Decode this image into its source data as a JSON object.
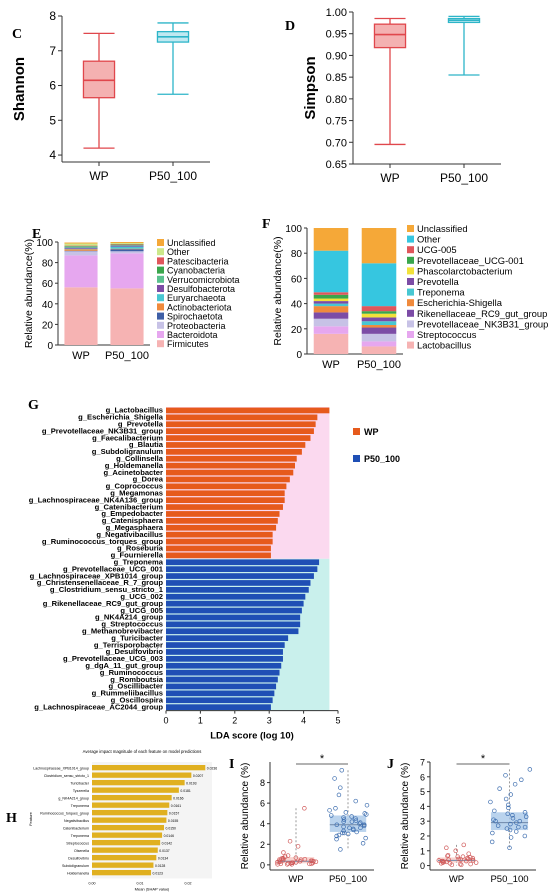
{
  "panel_labels": {
    "C": "C",
    "D": "D",
    "E": "E",
    "F": "F",
    "G": "G",
    "H": "H",
    "I": "I",
    "J": "J"
  },
  "colors": {
    "wp": "#e0474c",
    "p50": "#2db5c8",
    "wp_fill": "#f4b1b1",
    "p50_fill": "#bfe9f1",
    "lda_wp": "#e65a1c",
    "lda_p50": "#1f4fb5",
    "shap": "#e0b020"
  },
  "chart_data": [
    {
      "id": "C",
      "type": "box",
      "ylabel": "Shannon",
      "categories": [
        "WP",
        "P50_100"
      ],
      "ylim": [
        3.8,
        8
      ],
      "yticks": [
        4,
        5,
        6,
        7,
        8
      ],
      "boxes": [
        {
          "name": "WP",
          "min": 4.2,
          "q1": 5.65,
          "median": 6.15,
          "q3": 6.7,
          "max": 7.5
        },
        {
          "name": "P50_100",
          "min": 5.75,
          "q1": 7.25,
          "median": 7.4,
          "q3": 7.55,
          "max": 7.8
        }
      ]
    },
    {
      "id": "D",
      "type": "box",
      "ylabel": "Simpson",
      "categories": [
        "WP",
        "P50_100"
      ],
      "ylim": [
        0.65,
        1.0
      ],
      "yticks": [
        0.65,
        0.7,
        0.75,
        0.8,
        0.85,
        0.9,
        0.95,
        1.0
      ],
      "yticklabels": [
        "0.65",
        "0.70",
        "0.75",
        "0.80",
        "0.85",
        "0.90",
        "0.95",
        "1.00"
      ],
      "boxes": [
        {
          "name": "WP",
          "min": 0.695,
          "q1": 0.918,
          "median": 0.948,
          "q3": 0.972,
          "max": 0.985
        },
        {
          "name": "P50_100",
          "min": 0.855,
          "q1": 0.976,
          "median": 0.981,
          "q3": 0.985,
          "max": 0.99
        }
      ]
    },
    {
      "id": "E",
      "type": "bar",
      "stacked": true,
      "ylabel": "Relative abundance(%)",
      "categories": [
        "WP",
        "P50_100"
      ],
      "ylim": [
        0,
        100
      ],
      "yticks": [
        0,
        20,
        40,
        60,
        80,
        100
      ],
      "series": [
        {
          "name": "Firmicutes",
          "color": "#f6b3b3",
          "values": [
            56,
            55
          ]
        },
        {
          "name": "Bacteroidota",
          "color": "#e6a7ef",
          "values": [
            31,
            34
          ]
        },
        {
          "name": "Proteobacteria",
          "color": "#c7c2e6",
          "values": [
            4,
            2
          ]
        },
        {
          "name": "Spirochaetota",
          "color": "#3f5fa6",
          "values": [
            0.5,
            2
          ]
        },
        {
          "name": "Actinobacteriota",
          "color": "#f08a3c",
          "values": [
            1.5,
            0.5
          ]
        },
        {
          "name": "Euryarchaeota",
          "color": "#48c7d2",
          "values": [
            0.5,
            2
          ]
        },
        {
          "name": "Desulfobacterota",
          "color": "#7c4ca6",
          "values": [
            1,
            1
          ]
        },
        {
          "name": "Verrucomicrobiota",
          "color": "#5ac18e",
          "values": [
            1,
            0.5
          ]
        },
        {
          "name": "Cyanobacteria",
          "color": "#3aa64c",
          "values": [
            0.5,
            0.5
          ]
        },
        {
          "name": "Patescibacteria",
          "color": "#e0565b",
          "values": [
            0.5,
            0.5
          ]
        },
        {
          "name": "Other",
          "color": "#cce88a",
          "values": [
            2,
            1
          ]
        },
        {
          "name": "Unclassified",
          "color": "#f5a838",
          "values": [
            1,
            1
          ]
        }
      ]
    },
    {
      "id": "F",
      "type": "bar",
      "stacked": true,
      "ylabel": "Relative abundance(%)",
      "categories": [
        "WP",
        "P50_100"
      ],
      "ylim": [
        0,
        100
      ],
      "yticks": [
        0,
        20,
        40,
        60,
        80,
        100
      ],
      "series": [
        {
          "name": "Lactobacillus",
          "color": "#f6b3b3",
          "values": [
            16,
            6
          ]
        },
        {
          "name": "Streptococcus",
          "color": "#e6a7ef",
          "values": [
            6,
            4
          ]
        },
        {
          "name": "Prevotellaceae_NK3B31_group",
          "color": "#c7c2e6",
          "values": [
            6,
            6
          ]
        },
        {
          "name": "Rikenellaceae_RC9_gut_group",
          "color": "#7c4ca6",
          "values": [
            5,
            5
          ]
        },
        {
          "name": "Escherichia-Shigella",
          "color": "#f08a3c",
          "values": [
            5,
            2
          ]
        },
        {
          "name": "Treponema",
          "color": "#48c7d2",
          "values": [
            2,
            3
          ]
        },
        {
          "name": "Prevotella",
          "color": "#7c4ca6",
          "values": [
            2,
            3
          ]
        },
        {
          "name": "Phascolarctobacterium",
          "color": "#f2e23a",
          "values": [
            2,
            3
          ]
        },
        {
          "name": "Prevotellaceae_UCG-001",
          "color": "#3aa64c",
          "values": [
            3,
            2
          ]
        },
        {
          "name": "UCG-005",
          "color": "#e0565b",
          "values": [
            2,
            4
          ]
        },
        {
          "name": "Other",
          "color": "#36c6e0",
          "values": [
            33,
            34
          ]
        },
        {
          "name": "Unclassified",
          "color": "#f5a838",
          "values": [
            18,
            28
          ]
        }
      ]
    },
    {
      "id": "G",
      "type": "bar",
      "orientation": "horizontal",
      "xlabel": "LDA score (log 10)",
      "xlim": [
        0,
        5
      ],
      "xticks": [
        0,
        1,
        2,
        3,
        4,
        5
      ],
      "legend": [
        {
          "name": "WP",
          "color": "#e65a1c"
        },
        {
          "name": "P50_100",
          "color": "#1f4fb5"
        }
      ],
      "categories": [
        "g_Lactobacillus",
        "g_Escherichia_Shigella",
        "g_Prevotella",
        "g_Prevotellaceae_NK3B31_group",
        "g_Faecalibacterium",
        "g_Blautia",
        "g_Subdoligranulum",
        "g_Collinsella",
        "g_Holdemanella",
        "g_Acinetobacter",
        "g_Dorea",
        "g_Coprococcus",
        "g_Megamonas",
        "g_Lachnospiraceae_NK4A136_group",
        "g_Catenibacterium",
        "g_Empedobacter",
        "g_Catenisphaera",
        "g_Megasphaera",
        "g_Negativibacillus",
        "g_Ruminococcus_torques_group",
        "g_Roseburia",
        "g_Fournierella",
        "g_Treponema",
        "g_Prevotellaceae_UCG_001",
        "g_Lachnospiraceae_XPB1014_group",
        "g_Christensenellaceae_R_7_group",
        "g_Clostridium_sensu_stricto_1",
        "g_UCG_002",
        "g_Rikenellaceae_RC9_gut_group",
        "g_UCG_005",
        "g_NK4A214_group",
        "g_Streptococcus",
        "g_Methanobrevibacter",
        "g_Turicibacter",
        "g_Terrisporobacter",
        "g_Desulfovibrio",
        "g_Prevotellaceae_UCG_003",
        "g_dgA_11_gut_group",
        "g_Ruminococcus",
        "g_Romboutsia",
        "g_Oscillibacter",
        "g_Rummeliibacillus",
        "g_Oscillospira",
        "g_Lachnospiraceae_AC2044_group"
      ],
      "groups": [
        "WP",
        "WP",
        "WP",
        "WP",
        "WP",
        "WP",
        "WP",
        "WP",
        "WP",
        "WP",
        "WP",
        "WP",
        "WP",
        "WP",
        "WP",
        "WP",
        "WP",
        "WP",
        "WP",
        "WP",
        "WP",
        "WP",
        "P50_100",
        "P50_100",
        "P50_100",
        "P50_100",
        "P50_100",
        "P50_100",
        "P50_100",
        "P50_100",
        "P50_100",
        "P50_100",
        "P50_100",
        "P50_100",
        "P50_100",
        "P50_100",
        "P50_100",
        "P50_100",
        "P50_100",
        "P50_100",
        "P50_100",
        "P50_100",
        "P50_100",
        "P50_100"
      ],
      "values": [
        4.75,
        4.4,
        4.35,
        4.3,
        4.2,
        4.05,
        3.95,
        3.8,
        3.75,
        3.7,
        3.6,
        3.5,
        3.45,
        3.45,
        3.4,
        3.3,
        3.25,
        3.2,
        3.1,
        3.1,
        3.05,
        3.05,
        4.45,
        4.4,
        4.3,
        4.2,
        4.15,
        4.05,
        4.0,
        3.95,
        3.9,
        3.9,
        3.85,
        3.55,
        3.45,
        3.4,
        3.4,
        3.35,
        3.3,
        3.25,
        3.2,
        3.15,
        3.1,
        3.05
      ]
    },
    {
      "id": "H",
      "type": "bar",
      "orientation": "horizontal",
      "title": "Average impact magnitude of each feature on model predictions",
      "xlabel": "Mean |SHAP value|",
      "ylabel": "Feature",
      "categories": [
        "Lachnospiraceae_XPB1014_group",
        "Clostridium_sensu_stricto_1",
        "Turicibacter",
        "Tyzzerella",
        "g_NK4A214_group",
        "Treponema",
        "Ruminococcus_torques_group",
        "Negativibacillus",
        "Catenibacterium",
        "Treponema",
        "Streptococcus",
        "Olsenella",
        "Desulfovibrio",
        "Subdoligranulum",
        "Holdemanella"
      ],
      "values": [
        0.0236,
        0.0207,
        0.0193,
        0.0181,
        0.0166,
        0.0161,
        0.0157,
        0.0155,
        0.015,
        0.0146,
        0.0142,
        0.0137,
        0.0134,
        0.0128,
        0.0123
      ],
      "value_labels": [
        "0.0236",
        "0.0207",
        "0.0193",
        "0.0181",
        "0.0166",
        "0.0161",
        "0.0157",
        "0.0155",
        "0.0150",
        "0.0146",
        "0.0142",
        "0.0137",
        "0.0134",
        "0.0128",
        "0.0123"
      ],
      "xlim": [
        0,
        0.025
      ],
      "xticks": [
        "0.00",
        "0.01",
        "0.02"
      ]
    },
    {
      "id": "I",
      "type": "scatter",
      "ylabel": "Relative abundance (%)",
      "categories": [
        "WP",
        "P50_100"
      ],
      "ylim": [
        -0.5,
        10
      ],
      "yticks": [
        0,
        2,
        4,
        6,
        8
      ],
      "significance": "*",
      "boxes": [
        {
          "name": "WP",
          "min": 0,
          "q1": 0.15,
          "median": 0.35,
          "q3": 0.75,
          "max": 5.5
        },
        {
          "name": "P50_100",
          "min": 1.5,
          "q1": 3.2,
          "median": 3.9,
          "q3": 4.8,
          "max": 9.2
        }
      ],
      "points": [
        [
          0.1,
          0.2,
          0.3,
          0.05,
          0.4,
          0.6,
          0.15,
          0.25,
          0.5,
          0.8,
          0.1,
          0.35,
          0.2,
          0.45,
          0.7,
          0.05,
          0.3,
          0.55,
          0.9,
          0.15,
          0.25,
          0.4,
          0.6,
          0.1,
          0.2,
          1.2,
          1.8,
          2.3,
          5.5,
          0.35,
          0.5,
          0.65,
          0.2,
          0.05,
          0.3
        ],
        [
          3.1,
          3.5,
          4.2,
          3.8,
          2.9,
          4.6,
          5.1,
          3.3,
          4.0,
          4.4,
          3.7,
          2.5,
          5.5,
          6.2,
          4.8,
          3.9,
          3.2,
          4.1,
          5.0,
          2.1,
          3.6,
          4.3,
          4.7,
          3.0,
          5.8,
          6.8,
          7.5,
          8.4,
          9.2,
          3.4,
          4.5,
          2.8,
          3.9,
          4.9,
          1.5,
          3.6,
          4.2,
          5.3,
          2.6,
          3.1
        ]
      ]
    },
    {
      "id": "J",
      "type": "scatter",
      "ylabel": "Relative abundance (%)",
      "categories": [
        "WP",
        "P50_100"
      ],
      "ylim": [
        -0.3,
        7
      ],
      "yticks": [
        0,
        1,
        2,
        3,
        4,
        5,
        6,
        7
      ],
      "significance": "*",
      "boxes": [
        {
          "name": "WP",
          "min": 0,
          "q1": 0.2,
          "median": 0.35,
          "q3": 0.55,
          "max": 1.4
        },
        {
          "name": "P50_100",
          "min": 1.2,
          "q1": 2.4,
          "median": 2.9,
          "q3": 3.6,
          "max": 6.5
        }
      ],
      "points": [
        [
          0.1,
          0.2,
          0.3,
          0.45,
          0.05,
          0.6,
          0.35,
          0.25,
          0.5,
          0.8,
          0.15,
          0.4,
          0.2,
          0.55,
          0.7,
          0.1,
          0.3,
          0.65,
          1.0,
          1.2,
          1.4,
          0.25,
          0.45,
          0.35,
          0.15,
          0.5,
          0.05,
          0.3,
          0.4,
          0.6
        ],
        [
          2.2,
          2.6,
          3.0,
          3.4,
          2.8,
          3.9,
          4.3,
          2.5,
          3.1,
          3.6,
          2.0,
          1.6,
          4.8,
          5.2,
          5.8,
          6.1,
          6.5,
          2.9,
          3.3,
          2.4,
          3.7,
          4.1,
          2.7,
          3.2,
          1.2,
          1.9,
          3.5,
          4.5,
          2.6,
          3.0,
          5.5,
          2.3
        ]
      ]
    }
  ]
}
